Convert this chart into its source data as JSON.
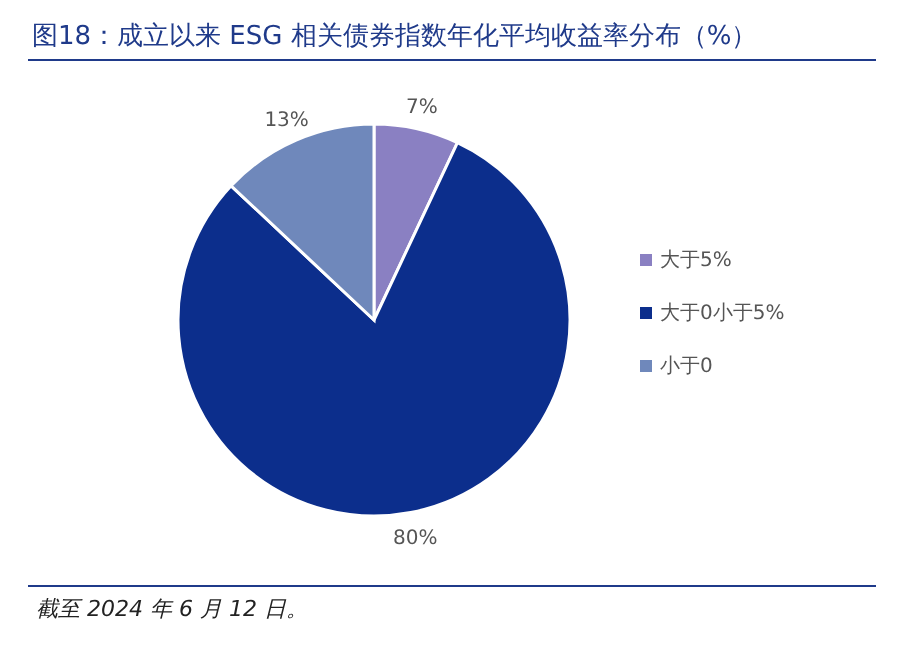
{
  "chart_data": {
    "type": "pie",
    "title": "图18：成立以来 ESG 相关债券指数年化平均收益率分布（%）",
    "categories": [
      "大于5%",
      "大于0小于5%",
      "小于0"
    ],
    "values": [
      7,
      80,
      13
    ],
    "value_labels": [
      "7%",
      "80%",
      "13%"
    ],
    "colors": [
      "#8a80c2",
      "#0c2e8c",
      "#6f88bb"
    ],
    "legend": "right",
    "annotations": [
      "截至 2024 年 6 月 12 日。"
    ]
  }
}
